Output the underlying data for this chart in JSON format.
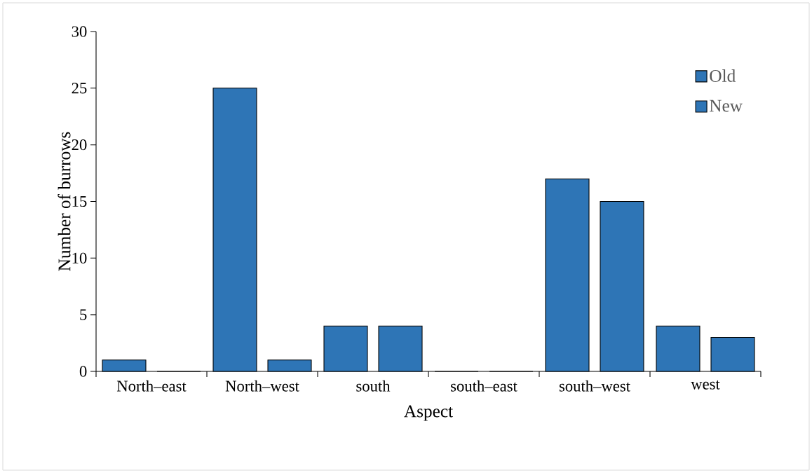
{
  "chart_data": {
    "type": "bar",
    "xlabel": "Aspect",
    "ylabel": "Number of burrows",
    "categories": [
      "North–east",
      "North–west",
      "south",
      "south–east",
      "south–west",
      "west"
    ],
    "series": [
      {
        "name": "Old",
        "color": "#2e75b6",
        "values": [
          1,
          25,
          4,
          0,
          17,
          4
        ]
      },
      {
        "name": "New",
        "color": "#2e75b6",
        "values": [
          0,
          1,
          4,
          0,
          15,
          3
        ]
      }
    ],
    "ylim": [
      0,
      30
    ],
    "yticks": [
      0,
      5,
      10,
      15,
      20,
      25,
      30
    ],
    "legend": "top right",
    "grid": false
  }
}
